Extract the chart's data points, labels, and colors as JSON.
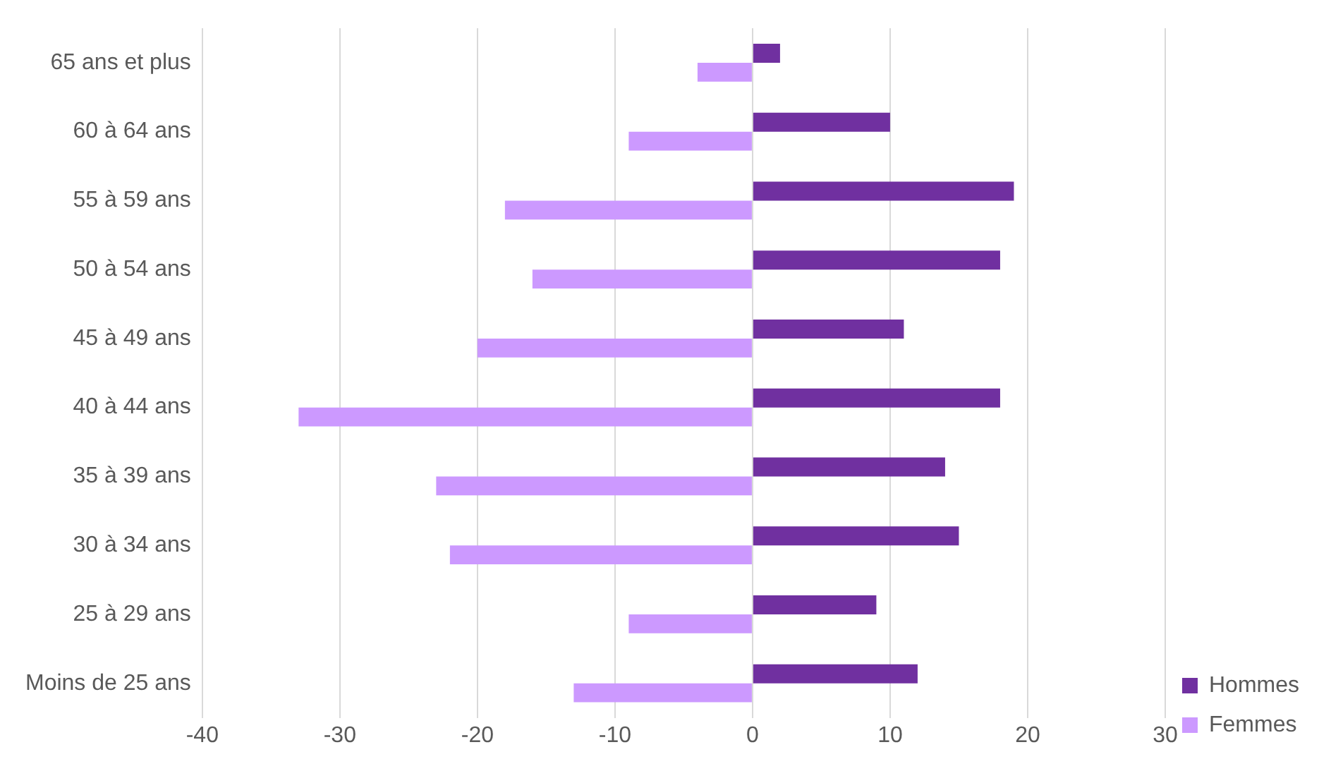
{
  "chart_data": {
    "type": "bar",
    "orientation": "horizontal",
    "categories": [
      "65 ans et plus",
      "60 à 64 ans",
      "55 à 59 ans",
      "50 à 54 ans",
      "45 à 49 ans",
      "40 à 44 ans",
      "35 à 39 ans",
      "30 à 34 ans",
      "25 à 29 ans",
      "Moins de 25 ans"
    ],
    "series": [
      {
        "name": "Hommes",
        "color": "#7030a0",
        "values": [
          2,
          10,
          19,
          18,
          11,
          18,
          14,
          15,
          9,
          12
        ]
      },
      {
        "name": "Femmes",
        "color": "#cc99ff",
        "values": [
          -4,
          -9,
          -18,
          -16,
          -20,
          -33,
          -23,
          -22,
          -9,
          -13
        ]
      }
    ],
    "xlim": [
      -40,
      30
    ],
    "xticks": [
      -40,
      -30,
      -20,
      -10,
      0,
      10,
      20,
      30
    ],
    "grid": "x",
    "legend": "right"
  }
}
